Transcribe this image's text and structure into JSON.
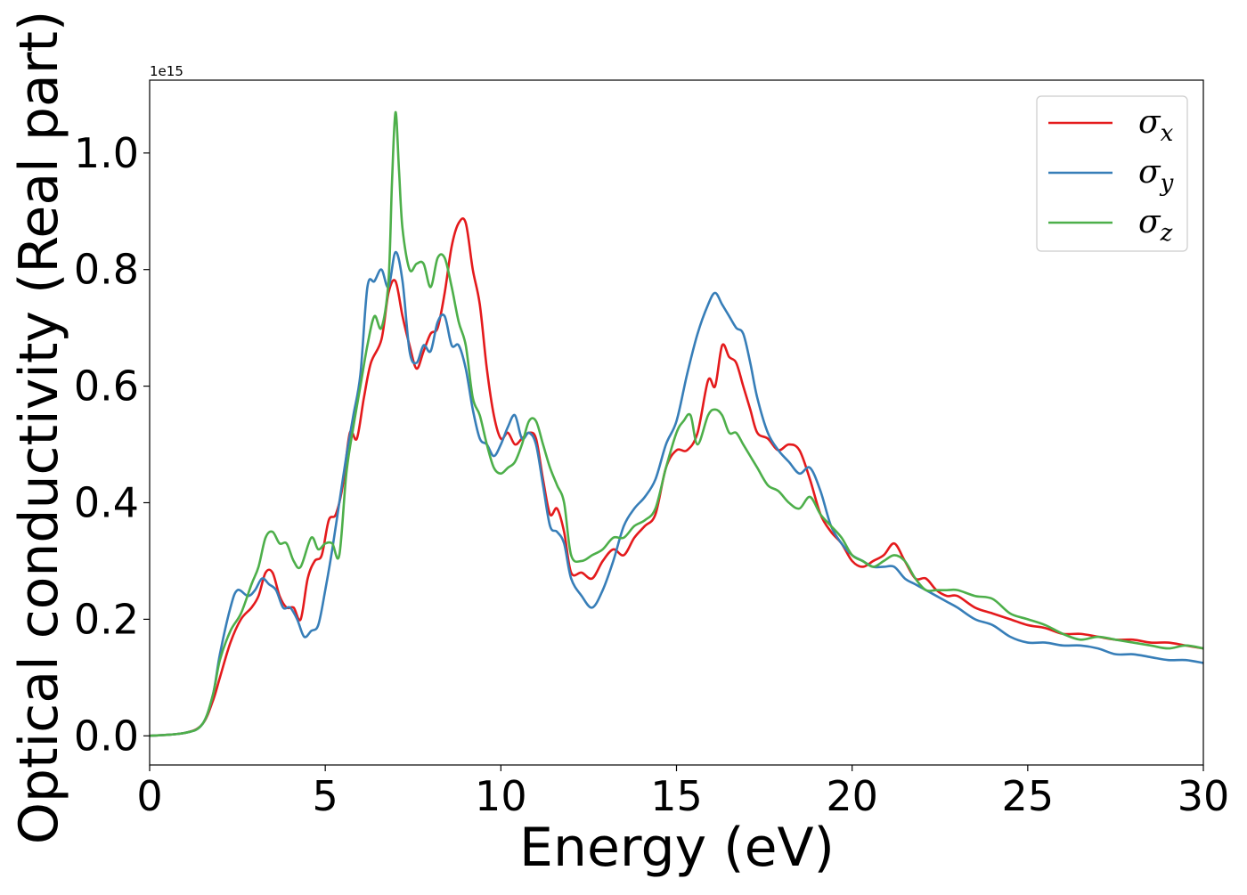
{
  "chart_data": {
    "type": "line",
    "xlabel": "Energy (eV)",
    "ylabel": "Optical conductivity (Real part)",
    "y_offset_text": "1e15",
    "y_scale_note": "values in units of 1e15",
    "xlim": [
      0,
      30
    ],
    "ylim": [
      -0.05,
      1.125
    ],
    "x_ticks": [
      0,
      5,
      10,
      15,
      20,
      25,
      30
    ],
    "x_tick_labels": [
      "0",
      "5",
      "10",
      "15",
      "20",
      "25",
      "30"
    ],
    "y_ticks": [
      0.0,
      0.2,
      0.4,
      0.6,
      0.8,
      1.0
    ],
    "y_tick_labels": [
      "0.0",
      "0.2",
      "0.4",
      "0.6",
      "0.8",
      "1.0"
    ],
    "grid": false,
    "legend_position": "top-right",
    "series": [
      {
        "name": "σx",
        "symbol": "σ",
        "subscript": "x",
        "color": "#e41a1c",
        "x": [
          0,
          1,
          1.5,
          1.8,
          2,
          2.3,
          2.6,
          2.9,
          3.1,
          3.3,
          3.5,
          3.7,
          3.9,
          4.1,
          4.3,
          4.5,
          4.7,
          4.9,
          5.1,
          5.3,
          5.5,
          5.7,
          5.9,
          6.1,
          6.3,
          6.6,
          6.8,
          7.0,
          7.2,
          7.4,
          7.6,
          7.8,
          8.0,
          8.2,
          8.4,
          8.6,
          8.8,
          9.0,
          9.2,
          9.4,
          9.6,
          9.8,
          10.0,
          10.2,
          10.4,
          10.6,
          10.8,
          11.0,
          11.2,
          11.4,
          11.6,
          11.8,
          12.0,
          12.3,
          12.6,
          12.9,
          13.2,
          13.5,
          13.8,
          14.1,
          14.4,
          14.7,
          15.0,
          15.3,
          15.6,
          15.9,
          16.1,
          16.3,
          16.5,
          16.7,
          16.9,
          17.1,
          17.3,
          17.6,
          17.9,
          18.2,
          18.5,
          18.8,
          19.1,
          19.4,
          19.7,
          20.0,
          20.3,
          20.6,
          20.9,
          21.2,
          21.5,
          21.8,
          22.1,
          22.4,
          22.7,
          23.0,
          23.5,
          24.0,
          24.5,
          25.0,
          25.5,
          26.0,
          26.5,
          27.0,
          27.5,
          28.0,
          28.5,
          29.0,
          29.5,
          30.0
        ],
        "y": [
          0,
          0.005,
          0.02,
          0.06,
          0.1,
          0.16,
          0.2,
          0.22,
          0.24,
          0.28,
          0.28,
          0.24,
          0.22,
          0.22,
          0.2,
          0.27,
          0.3,
          0.31,
          0.37,
          0.38,
          0.43,
          0.52,
          0.51,
          0.58,
          0.64,
          0.68,
          0.76,
          0.78,
          0.72,
          0.67,
          0.63,
          0.66,
          0.69,
          0.7,
          0.76,
          0.84,
          0.88,
          0.88,
          0.8,
          0.74,
          0.63,
          0.55,
          0.51,
          0.52,
          0.5,
          0.51,
          0.52,
          0.51,
          0.44,
          0.38,
          0.39,
          0.35,
          0.28,
          0.28,
          0.27,
          0.3,
          0.32,
          0.31,
          0.34,
          0.36,
          0.38,
          0.46,
          0.49,
          0.49,
          0.52,
          0.61,
          0.6,
          0.67,
          0.65,
          0.64,
          0.6,
          0.56,
          0.52,
          0.51,
          0.49,
          0.5,
          0.49,
          0.44,
          0.38,
          0.35,
          0.33,
          0.3,
          0.29,
          0.3,
          0.31,
          0.33,
          0.3,
          0.27,
          0.27,
          0.25,
          0.24,
          0.24,
          0.22,
          0.21,
          0.2,
          0.19,
          0.185,
          0.175,
          0.175,
          0.17,
          0.165,
          0.165,
          0.16,
          0.16,
          0.155,
          0.15
        ]
      },
      {
        "name": "σy",
        "symbol": "σ",
        "subscript": "y",
        "color": "#377eb8",
        "x": [
          0,
          1,
          1.5,
          1.8,
          2,
          2.3,
          2.5,
          2.8,
          3.0,
          3.2,
          3.4,
          3.6,
          3.8,
          4.0,
          4.2,
          4.4,
          4.6,
          4.8,
          5.0,
          5.2,
          5.4,
          5.6,
          5.8,
          6.0,
          6.2,
          6.4,
          6.6,
          6.8,
          7.0,
          7.2,
          7.4,
          7.6,
          7.8,
          8.0,
          8.2,
          8.4,
          8.6,
          8.8,
          9.0,
          9.2,
          9.4,
          9.6,
          9.8,
          10.0,
          10.2,
          10.4,
          10.6,
          10.8,
          11.0,
          11.2,
          11.4,
          11.6,
          11.8,
          12.0,
          12.3,
          12.6,
          12.9,
          13.2,
          13.5,
          13.8,
          14.1,
          14.4,
          14.7,
          15.0,
          15.3,
          15.6,
          15.9,
          16.1,
          16.3,
          16.5,
          16.7,
          16.9,
          17.1,
          17.3,
          17.6,
          17.9,
          18.2,
          18.5,
          18.8,
          19.1,
          19.4,
          19.7,
          20.0,
          20.3,
          20.6,
          20.9,
          21.2,
          21.5,
          21.8,
          22.1,
          22.4,
          22.7,
          23.0,
          23.5,
          24.0,
          24.5,
          25.0,
          25.5,
          26.0,
          26.5,
          27.0,
          27.5,
          28.0,
          28.5,
          29.0,
          29.5,
          30.0
        ],
        "y": [
          0,
          0.005,
          0.02,
          0.07,
          0.14,
          0.22,
          0.25,
          0.24,
          0.25,
          0.27,
          0.26,
          0.25,
          0.22,
          0.22,
          0.2,
          0.17,
          0.18,
          0.19,
          0.25,
          0.32,
          0.4,
          0.48,
          0.55,
          0.62,
          0.77,
          0.78,
          0.8,
          0.77,
          0.83,
          0.78,
          0.66,
          0.64,
          0.67,
          0.66,
          0.71,
          0.72,
          0.67,
          0.67,
          0.63,
          0.56,
          0.51,
          0.5,
          0.48,
          0.5,
          0.53,
          0.55,
          0.51,
          0.52,
          0.5,
          0.43,
          0.36,
          0.35,
          0.33,
          0.27,
          0.24,
          0.22,
          0.25,
          0.3,
          0.36,
          0.39,
          0.41,
          0.44,
          0.5,
          0.54,
          0.62,
          0.69,
          0.74,
          0.76,
          0.74,
          0.72,
          0.7,
          0.69,
          0.64,
          0.58,
          0.52,
          0.49,
          0.47,
          0.45,
          0.46,
          0.42,
          0.36,
          0.33,
          0.31,
          0.3,
          0.29,
          0.29,
          0.29,
          0.27,
          0.26,
          0.25,
          0.24,
          0.23,
          0.22,
          0.2,
          0.19,
          0.17,
          0.16,
          0.16,
          0.155,
          0.155,
          0.15,
          0.14,
          0.14,
          0.135,
          0.13,
          0.13,
          0.125
        ]
      },
      {
        "name": "σz",
        "symbol": "σ",
        "subscript": "z",
        "color": "#4daf4a",
        "x": [
          0,
          1,
          1.5,
          1.8,
          2,
          2.3,
          2.6,
          2.9,
          3.1,
          3.3,
          3.5,
          3.7,
          3.9,
          4.1,
          4.3,
          4.6,
          4.8,
          5.0,
          5.2,
          5.4,
          5.6,
          5.8,
          6.0,
          6.2,
          6.4,
          6.6,
          6.8,
          6.9,
          7.0,
          7.1,
          7.2,
          7.4,
          7.6,
          7.8,
          8.0,
          8.2,
          8.4,
          8.6,
          8.8,
          9.0,
          9.2,
          9.4,
          9.6,
          9.8,
          10.0,
          10.2,
          10.4,
          10.6,
          10.8,
          11.0,
          11.2,
          11.4,
          11.6,
          11.8,
          12.0,
          12.3,
          12.6,
          12.9,
          13.2,
          13.5,
          13.8,
          14.1,
          14.4,
          14.7,
          15.0,
          15.2,
          15.4,
          15.6,
          15.9,
          16.1,
          16.3,
          16.5,
          16.7,
          16.9,
          17.1,
          17.3,
          17.6,
          17.9,
          18.2,
          18.5,
          18.8,
          19.1,
          19.4,
          19.7,
          20.0,
          20.3,
          20.6,
          20.9,
          21.2,
          21.5,
          21.8,
          22.1,
          22.4,
          22.7,
          23.0,
          23.5,
          24.0,
          24.5,
          25.0,
          25.5,
          26.0,
          26.5,
          27.0,
          27.5,
          28.0,
          28.5,
          29.0,
          29.5,
          30.0
        ],
        "y": [
          0,
          0.005,
          0.02,
          0.07,
          0.13,
          0.18,
          0.21,
          0.26,
          0.29,
          0.34,
          0.35,
          0.33,
          0.33,
          0.3,
          0.29,
          0.34,
          0.32,
          0.33,
          0.33,
          0.31,
          0.45,
          0.53,
          0.6,
          0.67,
          0.72,
          0.7,
          0.78,
          0.95,
          1.07,
          0.97,
          0.87,
          0.8,
          0.81,
          0.81,
          0.77,
          0.82,
          0.82,
          0.77,
          0.71,
          0.67,
          0.58,
          0.55,
          0.5,
          0.46,
          0.45,
          0.46,
          0.47,
          0.5,
          0.54,
          0.54,
          0.5,
          0.46,
          0.43,
          0.4,
          0.31,
          0.3,
          0.31,
          0.32,
          0.34,
          0.34,
          0.36,
          0.37,
          0.39,
          0.46,
          0.52,
          0.54,
          0.55,
          0.5,
          0.55,
          0.56,
          0.55,
          0.52,
          0.52,
          0.5,
          0.48,
          0.46,
          0.43,
          0.42,
          0.4,
          0.39,
          0.41,
          0.38,
          0.36,
          0.34,
          0.31,
          0.3,
          0.29,
          0.3,
          0.31,
          0.3,
          0.27,
          0.25,
          0.25,
          0.25,
          0.25,
          0.24,
          0.235,
          0.21,
          0.2,
          0.19,
          0.175,
          0.165,
          0.17,
          0.165,
          0.16,
          0.155,
          0.15,
          0.155,
          0.15
        ]
      }
    ]
  }
}
